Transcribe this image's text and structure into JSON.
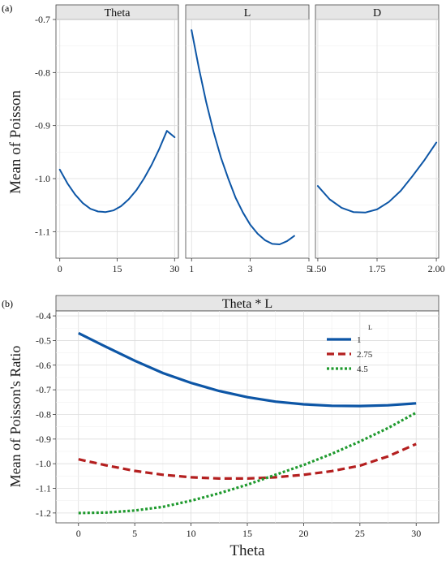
{
  "figure": {
    "panel_a_label": "(a)",
    "panel_b_label": "(b)"
  },
  "chart_data": [
    {
      "id": "a",
      "type": "line",
      "layout": "faceted",
      "ylabel": "Mean of Poisson",
      "ylim": [
        -1.15,
        -0.7
      ],
      "yticks": [
        -0.7,
        -0.8,
        -0.9,
        -1.0,
        -1.1
      ],
      "ytick_labels": [
        "-0.7",
        "-0.8",
        "-0.9",
        "-1.0",
        "-1.1"
      ],
      "grid": true,
      "series_color": "#0d56a6",
      "facets": [
        {
          "strip": "Theta",
          "xlim": [
            -1,
            31
          ],
          "xticks": [
            0,
            15,
            30
          ],
          "xtick_labels": [
            "0",
            "15",
            "30"
          ],
          "x": [
            0,
            2,
            4,
            6,
            8,
            10,
            12,
            14,
            16,
            18,
            20,
            22,
            24,
            26,
            28,
            30
          ],
          "y": [
            -0.983,
            -1.009,
            -1.03,
            -1.046,
            -1.057,
            -1.062,
            -1.063,
            -1.06,
            -1.052,
            -1.039,
            -1.022,
            -1.0,
            -0.974,
            -0.944,
            -0.91,
            -0.922
          ]
        },
        {
          "strip": "L",
          "xlim": [
            0.8,
            5.0
          ],
          "xticks": [
            1,
            3,
            5
          ],
          "xtick_labels": [
            "1",
            "3",
            "5"
          ],
          "x": [
            1.0,
            1.25,
            1.5,
            1.75,
            2.0,
            2.25,
            2.5,
            2.75,
            3.0,
            3.25,
            3.5,
            3.75,
            4.0,
            4.25,
            4.5
          ],
          "y": [
            -0.72,
            -0.792,
            -0.856,
            -0.912,
            -0.96,
            -1.0,
            -1.036,
            -1.064,
            -1.087,
            -1.104,
            -1.116,
            -1.123,
            -1.124,
            -1.118,
            -1.108
          ]
        },
        {
          "strip": "D",
          "xlim": [
            1.49,
            2.01
          ],
          "xticks": [
            1.5,
            1.75,
            2.0
          ],
          "xtick_labels": [
            "1.50",
            "1.75",
            "2.00"
          ],
          "x": [
            1.5,
            1.55,
            1.6,
            1.65,
            1.7,
            1.75,
            1.8,
            1.85,
            1.9,
            1.95,
            2.0
          ],
          "y": [
            -1.014,
            -1.039,
            -1.055,
            -1.063,
            -1.064,
            -1.058,
            -1.044,
            -1.023,
            -0.995,
            -0.965,
            -0.932
          ]
        }
      ]
    },
    {
      "id": "b",
      "type": "line",
      "strip": "Theta * L",
      "xlabel": "Theta",
      "ylabel": "Mean of Poisson's Ratio",
      "xlim": [
        -2,
        32
      ],
      "ylim": [
        -1.24,
        -0.38
      ],
      "xticks": [
        0,
        5,
        10,
        15,
        20,
        25,
        30
      ],
      "xtick_labels": [
        "0",
        "5",
        "10",
        "15",
        "20",
        "25",
        "30"
      ],
      "yticks": [
        -0.4,
        -0.5,
        -0.6,
        -0.7,
        -0.8,
        -0.9,
        -1.0,
        -1.1,
        -1.2
      ],
      "ytick_labels": [
        "-0.4",
        "-0.5",
        "-0.6",
        "-0.7",
        "-0.8",
        "-0.9",
        "-1.0",
        "-1.1",
        "-1.2"
      ],
      "grid": true,
      "legend": {
        "title": "L",
        "position": "top-right"
      },
      "x": [
        0,
        2.5,
        5,
        7.5,
        10,
        12.5,
        15,
        17.5,
        20,
        22.5,
        25,
        27.5,
        30
      ],
      "series": [
        {
          "name": "1",
          "color": "#0d56a6",
          "dash": "solid",
          "values": [
            -0.47,
            -0.527,
            -0.582,
            -0.632,
            -0.672,
            -0.705,
            -0.73,
            -0.748,
            -0.759,
            -0.765,
            -0.766,
            -0.763,
            -0.755
          ]
        },
        {
          "name": "2.75",
          "color": "#b41f1f",
          "dash": "dashed",
          "values": [
            -0.982,
            -1.007,
            -1.029,
            -1.045,
            -1.055,
            -1.06,
            -1.06,
            -1.055,
            -1.045,
            -1.03,
            -1.008,
            -0.97,
            -0.92
          ]
        },
        {
          "name": "4.5",
          "color": "#1f9a2e",
          "dash": "dotted",
          "values": [
            -1.2,
            -1.198,
            -1.19,
            -1.175,
            -1.15,
            -1.12,
            -1.085,
            -1.045,
            -1.005,
            -0.96,
            -0.91,
            -0.855,
            -0.793
          ]
        }
      ]
    }
  ]
}
